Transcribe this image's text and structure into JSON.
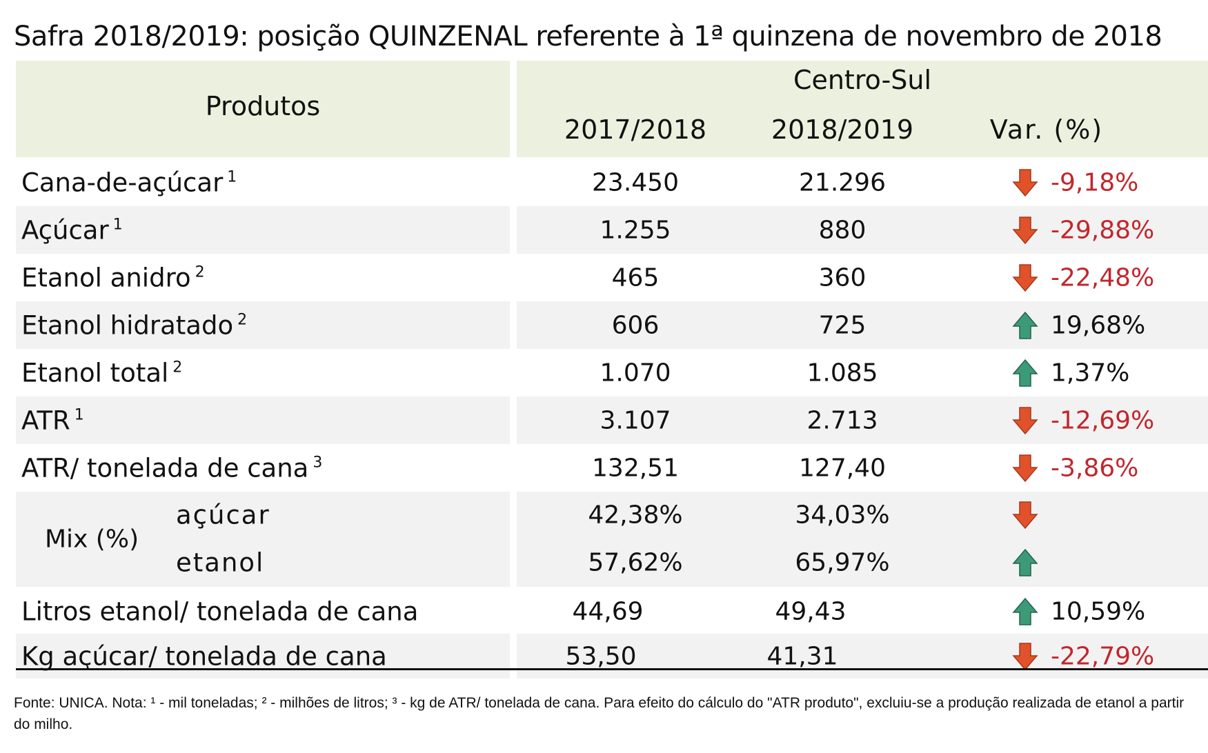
{
  "title": "Safra 2018/2019: posição QUINZENAL referente à 1ª quinzena de novembro de 2018",
  "header": {
    "produtos": "Produtos",
    "region": "Centro-Sul",
    "col1": "2017/2018",
    "col2": "2018/2019",
    "col3": "Var. (%)"
  },
  "rows": [
    {
      "label": "Cana-de-açúcar",
      "sup": "1",
      "v1": "23.450",
      "v2": "21.296",
      "var": "-9,18%",
      "dir": "down"
    },
    {
      "label": "Açúcar",
      "sup": "1",
      "v1": "1.255",
      "v2": "880",
      "var": "-29,88%",
      "dir": "down"
    },
    {
      "label": "Etanol anidro",
      "sup": "2",
      "v1": "465",
      "v2": "360",
      "var": "-22,48%",
      "dir": "down"
    },
    {
      "label": "Etanol hidratado",
      "sup": "2",
      "v1": "606",
      "v2": "725",
      "var": "19,68%",
      "dir": "up"
    },
    {
      "label": "Etanol total",
      "sup": "2",
      "v1": "1.070",
      "v2": "1.085",
      "var": "1,37%",
      "dir": "up"
    },
    {
      "label": "ATR",
      "sup": "1",
      "v1": "3.107",
      "v2": "2.713",
      "var": "-12,69%",
      "dir": "down"
    },
    {
      "label": "ATR/ tonelada de cana",
      "sup": "3",
      "v1": "132,51",
      "v2": "127,40",
      "var": "-3,86%",
      "dir": "down"
    }
  ],
  "mix": {
    "label": "Mix (%)",
    "acucar": {
      "label": "açúcar",
      "v1": "42,38%",
      "v2": "34,03%",
      "dir": "down"
    },
    "etanol": {
      "label": "etanol",
      "v1": "57,62%",
      "v2": "65,97%",
      "dir": "up"
    }
  },
  "rows_bottom": [
    {
      "label": "Litros etanol/ tonelada de cana",
      "v1": "44,69",
      "v2": "49,43",
      "var": "10,59%",
      "dir": "up"
    },
    {
      "label": "Kg açúcar/ tonelada de cana",
      "v1": "53,50",
      "v2": "41,31",
      "var": "-22,79%",
      "dir": "down"
    }
  ],
  "note": "Fonte: UNICA. Nota: ¹ - mil toneladas; ² - milhões de litros; ³ - kg de ATR/ tonelada de cana. Para efeito do cálculo do \"ATR produto\", excluiu-se a produção realizada de etanol a partir do milho.",
  "colors": {
    "header_bg": "#ebf1de",
    "row_shade": "#f2f2f2",
    "negative": "#c0272d",
    "arrow_down": "#e1522a",
    "arrow_up": "#3d9a78"
  },
  "icons": {
    "down": "arrow-down-icon",
    "up": "arrow-up-icon"
  }
}
